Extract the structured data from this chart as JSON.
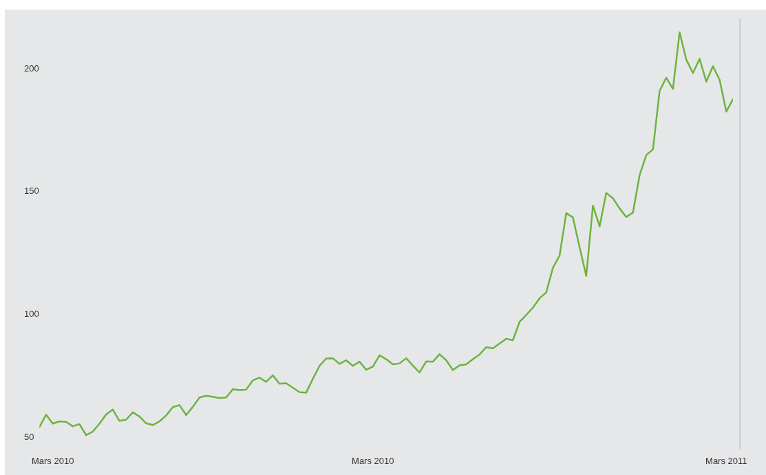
{
  "chart_data": {
    "type": "line",
    "categories": [
      null,
      null,
      "Mars 2010",
      null,
      null,
      null,
      null,
      null,
      null,
      null,
      null,
      null,
      null,
      null,
      null,
      null,
      null,
      null,
      null,
      null,
      null,
      null,
      null,
      null,
      null,
      null,
      null,
      null,
      null,
      null,
      null,
      null,
      null,
      null,
      null,
      null,
      null,
      null,
      null,
      null,
      null,
      null,
      null,
      null,
      null,
      null,
      null,
      null,
      null,
      null,
      "Mars 2010",
      null,
      null,
      null,
      null,
      null,
      null,
      null,
      null,
      null,
      null,
      null,
      null,
      null,
      null,
      null,
      null,
      null,
      null,
      null,
      null,
      null,
      null,
      null,
      null,
      null,
      null,
      null,
      null,
      null,
      null,
      null,
      null,
      null,
      null,
      null,
      null,
      null,
      null,
      null,
      null,
      null,
      null,
      null,
      null,
      null,
      null,
      null,
      null,
      null,
      null,
      null,
      null,
      "Mars 2011",
      null
    ],
    "values": [
      53.9,
      58.9,
      55.3,
      56.2,
      56.0,
      54.2,
      55.1,
      50.6,
      52.0,
      55.3,
      59.0,
      61.0,
      56.4,
      56.9,
      59.9,
      58.2,
      55.4,
      54.7,
      56.2,
      58.6,
      62.0,
      62.8,
      58.8,
      62.1,
      65.9,
      66.6,
      66.2,
      65.7,
      65.9,
      69.3,
      68.9,
      69.1,
      72.9,
      74.0,
      72.3,
      74.9,
      71.5,
      71.7,
      69.9,
      68.1,
      67.9,
      73.5,
      78.8,
      81.8,
      81.9,
      79.6,
      81.1,
      78.8,
      80.5,
      77.2,
      78.5,
      83.1,
      81.5,
      79.4,
      79.8,
      81.9,
      78.9,
      76.1,
      80.6,
      80.5,
      83.5,
      81.1,
      77.1,
      79.0,
      79.4,
      81.5,
      83.4,
      86.4,
      85.9,
      87.9,
      89.8,
      89.2,
      96.7,
      99.5,
      102.5,
      106.3,
      108.7,
      118.7,
      123.7,
      141.0,
      139.2,
      127.1,
      115.4,
      144.0,
      135.6,
      149.2,
      147.0,
      142.9,
      139.4,
      141.2,
      156.4,
      164.6,
      166.9,
      190.7,
      196.1,
      191.5,
      214.6,
      203.4,
      198.0,
      203.8,
      194.5,
      200.8,
      195.2,
      182.3,
      187.3
    ],
    "color": "#6db33f",
    "ylim": [
      45,
      220
    ],
    "yticks": [
      50,
      100,
      150,
      200
    ],
    "grid": false,
    "legend": false,
    "marker": "none",
    "line_style": "solid"
  }
}
